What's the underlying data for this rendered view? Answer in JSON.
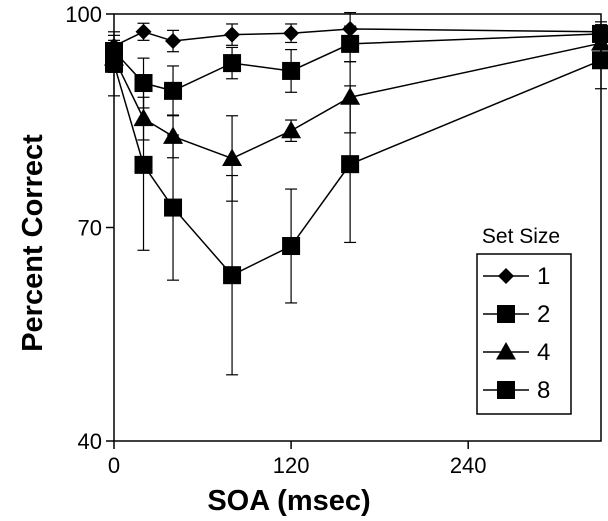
{
  "chart_data": {
    "type": "line",
    "xlabel": "SOA (msec)",
    "ylabel": "Percent Correct",
    "xlim": [
      0,
      330
    ],
    "ylim": [
      40,
      100
    ],
    "xticks": [
      0,
      120,
      240
    ],
    "yticks": [
      40,
      70,
      100
    ],
    "x": [
      0,
      20,
      40,
      80,
      120,
      160,
      330
    ],
    "legend": {
      "title": "Set Size",
      "placement": "lower-right"
    },
    "series": [
      {
        "name": "1",
        "marker": "diamond",
        "values": [
          95.5,
          97.5,
          96.2,
          97.1,
          97.3,
          97.9,
          97.5
        ],
        "errors": [
          1.5,
          1.2,
          1.5,
          1.5,
          1.3,
          2.3,
          1.4
        ]
      },
      {
        "name": "2",
        "marker": "square",
        "values": [
          94.8,
          90.3,
          89.2,
          93.1,
          92.0,
          95.8,
          97.2
        ],
        "errors": [
          1.5,
          3.5,
          3.5,
          2.2,
          3.0,
          2.5,
          1.3
        ]
      },
      {
        "name": "4",
        "marker": "triangle",
        "values": [
          93.8,
          85.3,
          82.8,
          79.7,
          83.6,
          88.3,
          95.9
        ],
        "errors": [
          2.0,
          3.0,
          3.0,
          6.0,
          1.5,
          5.0,
          1.5
        ]
      },
      {
        "name": "8",
        "marker": "square",
        "values": [
          93.0,
          78.8,
          72.8,
          63.3,
          67.4,
          78.9,
          93.5
        ],
        "errors": [
          4.5,
          12.0,
          10.2,
          14.0,
          8.0,
          11.0,
          4.0
        ]
      }
    ]
  }
}
